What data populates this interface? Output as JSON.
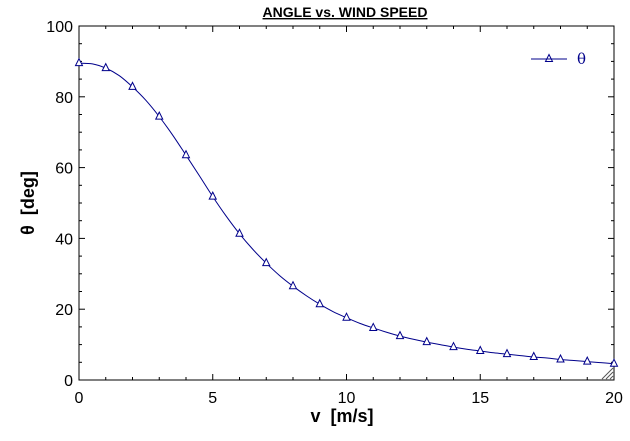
{
  "chart_data": {
    "type": "line",
    "title": "ANGLE vs. WIND SPEED",
    "xlabel": "v  [m/s]",
    "ylabel": "θ  [deg]",
    "xlim": [
      0,
      20
    ],
    "ylim": [
      0,
      100
    ],
    "x_ticks": [
      "0",
      "5",
      "10",
      "15",
      "20"
    ],
    "y_ticks": [
      "0",
      "20",
      "40",
      "60",
      "80",
      "100"
    ],
    "grid": false,
    "legend_position": "top-right",
    "series": [
      {
        "name": "θ",
        "color": "#00008B",
        "marker": "triangle-open",
        "curve_x": [
          0,
          0.5,
          1,
          1.5,
          2,
          2.5,
          3,
          3.5,
          4,
          4.5,
          5,
          5.5,
          6,
          6.5,
          7,
          7.5,
          8,
          8.5,
          9,
          9.5,
          10,
          10.5,
          11,
          11.5,
          12,
          12.5,
          13,
          13.5,
          14,
          14.5,
          15,
          15.5,
          16,
          16.5,
          17,
          17.5,
          18,
          18.5,
          19,
          19.5,
          20
        ],
        "curve_y": [
          89.5,
          89.3,
          88.1,
          86.0,
          82.8,
          79.0,
          74.4,
          69.2,
          63.5,
          57.7,
          51.8,
          46.3,
          41.3,
          36.9,
          33.0,
          29.5,
          26.5,
          23.8,
          21.4,
          19.3,
          17.6,
          16.0,
          14.7,
          13.5,
          12.4,
          11.5,
          10.7,
          10.0,
          9.3,
          8.7,
          8.2,
          7.7,
          7.3,
          6.9,
          6.5,
          6.2,
          5.8,
          5.5,
          5.2,
          4.9,
          4.6
        ],
        "marker_x": [
          0,
          1,
          2,
          3,
          4,
          5,
          6,
          7,
          8,
          9,
          10,
          11,
          12,
          13,
          14,
          15,
          16,
          17,
          18,
          19,
          20
        ],
        "marker_y": [
          89.5,
          88.1,
          82.8,
          74.4,
          63.5,
          51.8,
          41.3,
          33.0,
          26.5,
          21.4,
          17.6,
          14.7,
          12.4,
          10.7,
          9.3,
          8.2,
          7.3,
          6.5,
          5.8,
          5.2,
          4.6
        ]
      }
    ]
  }
}
